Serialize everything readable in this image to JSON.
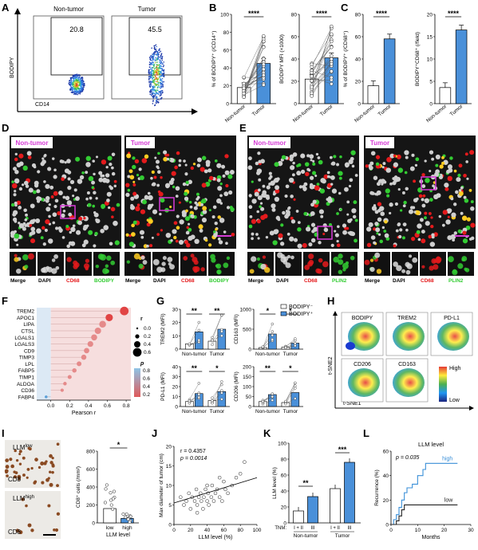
{
  "panels": {
    "A": "A",
    "B": "B",
    "C": "C",
    "D": "D",
    "E": "E",
    "F": "F",
    "G": "G",
    "H": "H",
    "I": "I",
    "J": "J",
    "K": "K",
    "L": "L"
  },
  "colors": {
    "bar": "#4a90d9",
    "magenta": "#d63bd6",
    "red": "#e41a1c",
    "green": "#33cc33",
    "line_high": "#3a8fd8",
    "line_low": "#222222"
  },
  "flow": {
    "left_title": "Non-tumor",
    "right_title": "Tumor",
    "left_pct": "20.8",
    "right_pct": "45.5",
    "ylabel": "BODIPY",
    "xlabel": "CD14"
  },
  "micro_D": {
    "left": "Non-tumor",
    "right": "Tumor",
    "insets": [
      "Merge",
      "DAPI",
      "CD68",
      "BODIPY"
    ],
    "insets2": [
      "Merge",
      "DAPI",
      "CD68",
      "BODIPY"
    ]
  },
  "micro_E": {
    "left": "Non-tumor",
    "right": "Tumor",
    "insets": [
      "Merge",
      "DAPI",
      "CD68",
      "PLIN2"
    ],
    "insets2": [
      "Merge",
      "DAPI",
      "CD68",
      "PLIN2"
    ]
  },
  "tsne": {
    "titles": [
      "BODIPY",
      "TREM2",
      "PD-L1",
      "CD206",
      "CD163"
    ],
    "ylabel": "t-SNE2",
    "xlabel": "t-SNE1",
    "high": "High",
    "low": "Low"
  },
  "ihc": {
    "top": "LLM",
    "top_sup": "low",
    "bottom": "LLM",
    "bottom_sup": "high",
    "stain": "CD8"
  },
  "chart_data": [
    {
      "id": "B1",
      "type": "bar",
      "ylabel": "% of BODIPY⁺ (/CD14⁺)",
      "categories": [
        "Non-tumor",
        "Tumor"
      ],
      "values": [
        18,
        45
      ],
      "ylim": [
        0,
        100
      ],
      "yticks": [
        0,
        20,
        40,
        60,
        80,
        100
      ],
      "sig": "****"
    },
    {
      "id": "B2",
      "type": "bar",
      "ylabel": "BODIPY MFI (×1000)",
      "categories": [
        "Non-tumor",
        "Tumor"
      ],
      "values": [
        22,
        41
      ],
      "ylim": [
        0,
        80
      ],
      "yticks": [
        0,
        20,
        40,
        60,
        80
      ],
      "sig": "****"
    },
    {
      "id": "C1",
      "type": "bar",
      "ylabel": "% of BODIPY⁺ (/CD68⁺)",
      "categories": [
        "Non-tumor",
        "Tumor"
      ],
      "values": [
        16,
        58
      ],
      "ylim": [
        0,
        80
      ],
      "yticks": [
        0,
        20,
        40,
        60,
        80
      ],
      "sig": "****"
    },
    {
      "id": "C2",
      "type": "bar",
      "ylabel": "BODIPY⁺CD68⁺ (/field)",
      "categories": [
        "Non-tumor",
        "Tumor"
      ],
      "values": [
        3.6,
        16.5
      ],
      "ylim": [
        0,
        20
      ],
      "yticks": [
        0,
        5,
        10,
        15,
        20
      ],
      "sig": "****"
    },
    {
      "id": "F",
      "type": "scatter",
      "xlabel": "Pearson r",
      "genes": [
        "TREM2",
        "APOC1",
        "LIPA",
        "CTSL",
        "LGALS1",
        "LGALS3",
        "CD9",
        "TIMP3",
        "LPL",
        "FABP5",
        "TIMP1",
        "ALDOA",
        "CD36",
        "FABP4"
      ],
      "r": [
        0.78,
        0.62,
        0.55,
        0.5,
        0.46,
        0.42,
        0.38,
        0.35,
        0.3,
        0.25,
        0.2,
        0.15,
        0.12,
        -0.05
      ],
      "xlim": [
        -0.15,
        0.85
      ],
      "xticks": [
        0.0,
        0.2,
        0.4,
        0.6,
        0.8
      ],
      "size_legend_title": "r",
      "size_legend": [
        "0.0",
        "0.2",
        "0.4",
        "0.6"
      ],
      "color_legend_title": "p",
      "color_legend": [
        "0.8",
        "0.6",
        "0.4",
        "0.2"
      ]
    },
    {
      "id": "G1",
      "type": "bar",
      "ylabel": "TREM2 (MFI)",
      "groups": [
        "Non-tumor",
        "Tumor"
      ],
      "series": [
        {
          "name": "BODIPY⁻",
          "values": [
            4,
            6
          ]
        },
        {
          "name": "BODIPY⁺",
          "values": [
            13,
            15
          ]
        }
      ],
      "ylim": [
        0,
        30
      ],
      "yticks": [
        0,
        10,
        20,
        30
      ],
      "sig": [
        "**",
        "**"
      ]
    },
    {
      "id": "G2",
      "type": "bar",
      "ylabel": "CD163 (MFI)",
      "groups": [
        "Non-tumor",
        "Tumor"
      ],
      "series": [
        {
          "name": "BODIPY⁻",
          "values": [
            40,
            50
          ]
        },
        {
          "name": "BODIPY⁺",
          "values": [
            380,
            150
          ]
        }
      ],
      "ylim": [
        0,
        1000
      ],
      "yticks": [
        0,
        500,
        1000
      ],
      "sig": [
        "*",
        "*"
      ]
    },
    {
      "id": "G3",
      "type": "bar",
      "ylabel": "PD-L1 (MFI)",
      "groups": [
        "Non-tumor",
        "Tumor"
      ],
      "series": [
        {
          "name": "BODIPY⁻",
          "values": [
            5,
            6
          ]
        },
        {
          "name": "BODIPY⁺",
          "values": [
            13,
            15
          ]
        }
      ],
      "ylim": [
        0,
        40
      ],
      "yticks": [
        0,
        10,
        20,
        30,
        40
      ],
      "sig": [
        "**",
        "*"
      ]
    },
    {
      "id": "G4",
      "type": "bar",
      "ylabel": "CD206 (MFI)",
      "groups": [
        "Non-tumor",
        "Tumor"
      ],
      "series": [
        {
          "name": "BODIPY⁻",
          "values": [
            25,
            20
          ]
        },
        {
          "name": "BODIPY⁺",
          "values": [
            60,
            70
          ]
        }
      ],
      "ylim": [
        0,
        200
      ],
      "yticks": [
        0,
        50,
        100,
        150,
        200
      ],
      "sig": [
        "**",
        "*"
      ]
    },
    {
      "id": "I",
      "type": "bar",
      "ylabel": "CD8⁺ cells (/mm²)",
      "xlabel": "LLM level",
      "categories": [
        "low",
        "high"
      ],
      "values": [
        160,
        50
      ],
      "ylim": [
        0,
        800
      ],
      "yticks": [
        0,
        200,
        400,
        600,
        800
      ],
      "sig": "*"
    },
    {
      "id": "J",
      "type": "scatter",
      "ylabel": "Max diameter of tumor (cm)",
      "xlabel": "LLM level (%)",
      "annot_r": "r = 0.4357",
      "annot_p": "p = 0.0014",
      "xlim": [
        0,
        100
      ],
      "ylim": [
        0,
        20
      ],
      "xticks": [
        0,
        20,
        40,
        60,
        80,
        100
      ],
      "yticks": [
        0,
        5,
        10,
        15,
        20
      ],
      "x": [
        8,
        12,
        15,
        18,
        20,
        22,
        25,
        27,
        28,
        30,
        32,
        33,
        35,
        36,
        38,
        40,
        41,
        42,
        45,
        46,
        48,
        50,
        52,
        55,
        58,
        60,
        62,
        65,
        70,
        75,
        80,
        85,
        28,
        40,
        55
      ],
      "y": [
        7,
        5,
        6,
        8,
        4,
        7,
        6,
        9,
        5,
        7,
        8,
        6,
        4,
        7,
        9,
        6,
        8,
        5,
        7,
        10,
        6,
        8,
        9,
        7,
        6,
        11,
        9,
        8,
        10,
        12,
        13,
        16,
        3,
        10,
        12
      ]
    },
    {
      "id": "K",
      "type": "bar",
      "ylabel": "LLM level (%)",
      "groups": [
        "Non-tumor",
        "Tumor"
      ],
      "xlabel_prefix": "TNM:",
      "categories": [
        "I + II",
        "III",
        "I + II",
        "III"
      ],
      "values": [
        15,
        33,
        43,
        76
      ],
      "ylim": [
        0,
        100
      ],
      "yticks": [
        0,
        20,
        40,
        60,
        80,
        100
      ],
      "sig": [
        "**",
        "***"
      ]
    },
    {
      "id": "L",
      "type": "line",
      "title": "LLM level",
      "ylabel": "Recurrence (%)",
      "xlabel": "Months",
      "annot_p": "p = 0.035",
      "xlim": [
        0,
        30
      ],
      "ylim": [
        0,
        60
      ],
      "xticks": [
        0,
        10,
        20,
        30
      ],
      "yticks": [
        0,
        20,
        40,
        60
      ],
      "series": [
        {
          "name": "high",
          "x": [
            0,
            1,
            2,
            3,
            4,
            5,
            6,
            8,
            10,
            12,
            13,
            25
          ],
          "y": [
            0,
            4,
            8,
            14,
            20,
            26,
            30,
            33,
            40,
            45,
            50,
            50
          ]
        },
        {
          "name": "low",
          "x": [
            0,
            2,
            3,
            4,
            5,
            25
          ],
          "y": [
            0,
            3,
            7,
            12,
            16,
            16
          ]
        }
      ]
    }
  ]
}
